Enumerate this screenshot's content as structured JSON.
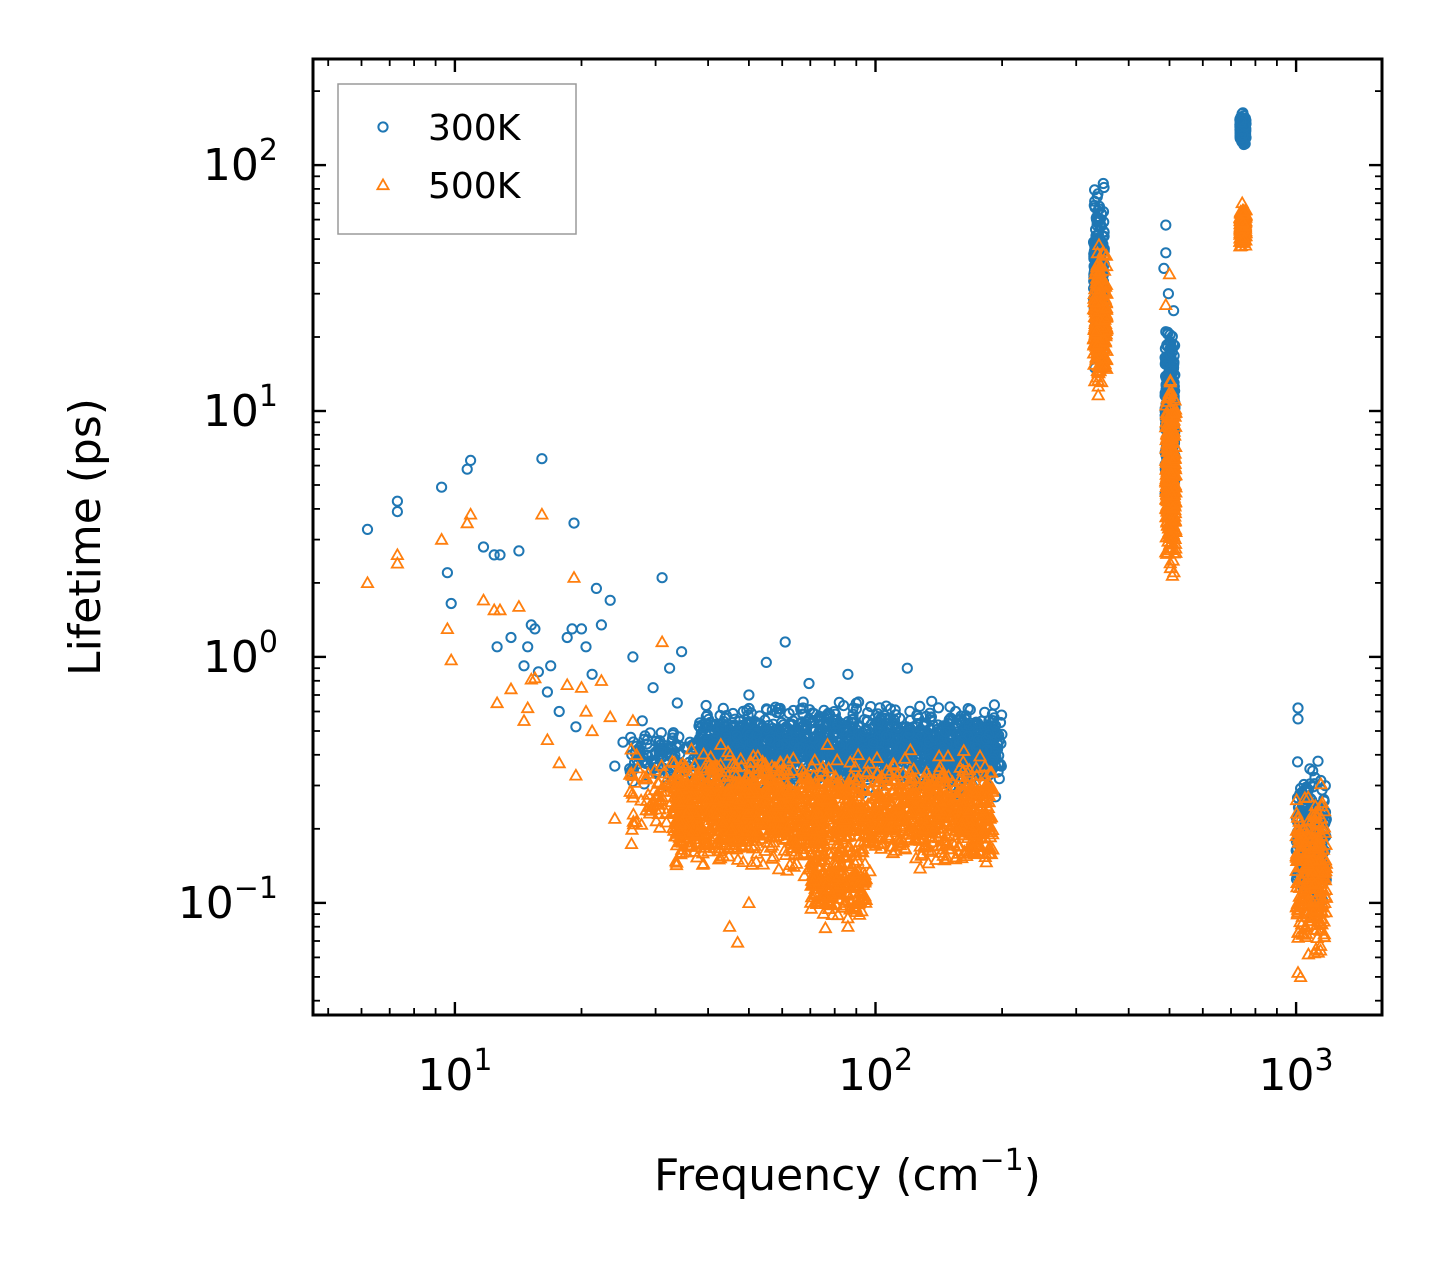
{
  "chart_data": {
    "type": "scatter",
    "title": "",
    "xlabel": "Frequency (cm",
    "xlabel_superscript": "−1",
    "xlabel_suffix": ")",
    "ylabel": "Lifetime (ps)",
    "xscale": "log",
    "yscale": "log",
    "xlim": [
      4.6,
      1600
    ],
    "ylim": [
      0.035,
      270
    ],
    "legend_position": "top-left",
    "x_ticks": [
      {
        "value": 10,
        "base": "10",
        "exp": "1"
      },
      {
        "value": 100,
        "base": "10",
        "exp": "2"
      },
      {
        "value": 1000,
        "base": "10",
        "exp": "3"
      }
    ],
    "y_ticks": [
      {
        "value": 0.1,
        "base": "10",
        "exp": "−1"
      },
      {
        "value": 1,
        "base": "10",
        "exp": "0"
      },
      {
        "value": 10,
        "base": "10",
        "exp": "1"
      },
      {
        "value": 100,
        "base": "10",
        "exp": "2"
      }
    ],
    "series": [
      {
        "name": "300K",
        "color": "#1f77b4",
        "marker": "circle",
        "points": [
          [
            6.2,
            3.3
          ],
          [
            7.3,
            4.3
          ],
          [
            7.3,
            3.9
          ],
          [
            9.3,
            4.9
          ],
          [
            9.6,
            2.2
          ],
          [
            9.8,
            1.65
          ],
          [
            10.7,
            5.8
          ],
          [
            10.9,
            6.3
          ],
          [
            11.7,
            2.8
          ],
          [
            12.4,
            2.6
          ],
          [
            12.8,
            2.6
          ],
          [
            12.6,
            1.1
          ],
          [
            13.6,
            1.2
          ],
          [
            14.2,
            2.7
          ],
          [
            14.6,
            0.92
          ],
          [
            14.9,
            1.1
          ],
          [
            15.2,
            1.35
          ],
          [
            15.5,
            1.3
          ],
          [
            15.8,
            0.87
          ],
          [
            16.1,
            6.4
          ],
          [
            16.6,
            0.72
          ],
          [
            16.9,
            0.92
          ],
          [
            17.7,
            0.6
          ],
          [
            18.5,
            1.2
          ],
          [
            19.0,
            1.3
          ],
          [
            19.2,
            3.5
          ],
          [
            19.4,
            0.52
          ],
          [
            20.0,
            1.3
          ],
          [
            20.5,
            1.1
          ],
          [
            21.2,
            0.85
          ],
          [
            21.7,
            1.9
          ],
          [
            22.3,
            1.35
          ],
          [
            23.4,
            1.7
          ],
          [
            24.0,
            0.36
          ],
          [
            25.1,
            0.45
          ],
          [
            26.5,
            1.0
          ],
          [
            27.9,
            0.55
          ],
          [
            29.6,
            0.75
          ],
          [
            31.1,
            2.1
          ],
          [
            32.4,
            0.9
          ],
          [
            33.8,
            0.65
          ],
          [
            34.6,
            1.05
          ],
          [
            36.2,
            0.45
          ],
          [
            50.0,
            0.7
          ],
          [
            55.0,
            0.95
          ],
          [
            61.0,
            1.15
          ],
          [
            69.5,
            0.78
          ],
          [
            86.0,
            0.85
          ],
          [
            88.5,
            0.62
          ],
          [
            119.0,
            0.9
          ],
          [
            136.0,
            0.66
          ],
          [
            155.0,
            0.6
          ],
          [
            168.0,
            0.61
          ],
          [
            185.0,
            0.3
          ],
          [
            193.0,
            0.27
          ],
          [
            490.0,
            57
          ],
          [
            490.0,
            44
          ],
          [
            485.0,
            38
          ],
          [
            497.0,
            30
          ],
          [
            1010.0,
            0.62
          ],
          [
            1010.0,
            0.56
          ]
        ],
        "clusters": [
          {
            "x": [
              26,
              60
            ],
            "y": [
              0.28,
              0.55
            ],
            "n": 260
          },
          {
            "x": [
              38,
              200
            ],
            "y": [
              0.26,
              0.7
            ],
            "n": 1700
          },
          {
            "x": [
              330,
              350
            ],
            "y": [
              12,
              102
            ],
            "n": 240
          },
          {
            "x": [
              488,
              515
            ],
            "y": [
              3,
              32
            ],
            "n": 320
          },
          {
            "x": [
              735,
              760
            ],
            "y": [
              115,
              168
            ],
            "n": 160
          },
          {
            "x": [
              1000,
              1180
            ],
            "y": [
              0.08,
              0.42
            ],
            "n": 260
          }
        ]
      },
      {
        "name": "500K",
        "color": "#ff7f0e",
        "marker": "triangle",
        "points": [
          [
            6.2,
            2.0
          ],
          [
            7.3,
            2.6
          ],
          [
            7.3,
            2.4
          ],
          [
            9.3,
            3.0
          ],
          [
            9.6,
            1.3
          ],
          [
            9.8,
            0.97
          ],
          [
            10.7,
            3.5
          ],
          [
            10.9,
            3.8
          ],
          [
            11.7,
            1.7
          ],
          [
            12.4,
            1.55
          ],
          [
            12.8,
            1.55
          ],
          [
            12.6,
            0.65
          ],
          [
            13.6,
            0.74
          ],
          [
            14.2,
            1.6
          ],
          [
            14.6,
            0.55
          ],
          [
            14.9,
            0.62
          ],
          [
            15.2,
            0.81
          ],
          [
            15.5,
            0.82
          ],
          [
            16.1,
            3.8
          ],
          [
            16.6,
            0.46
          ],
          [
            17.7,
            0.37
          ],
          [
            18.5,
            0.77
          ],
          [
            19.2,
            2.1
          ],
          [
            19.4,
            0.33
          ],
          [
            20.0,
            0.75
          ],
          [
            20.5,
            0.6
          ],
          [
            21.2,
            0.5
          ],
          [
            22.3,
            0.8
          ],
          [
            23.4,
            0.57
          ],
          [
            24.0,
            0.22
          ],
          [
            26.5,
            0.55
          ],
          [
            31.1,
            1.15
          ],
          [
            45.0,
            0.08
          ],
          [
            47.0,
            0.069
          ],
          [
            50.0,
            0.1
          ],
          [
            76.0,
            0.079
          ],
          [
            86.0,
            0.08
          ],
          [
            190.0,
            0.165
          ],
          [
            500.0,
            36
          ],
          [
            490.0,
            27
          ],
          [
            1010.0,
            0.052
          ],
          [
            1025.0,
            0.05
          ]
        ],
        "clusters": [
          {
            "x": [
              26,
              60
            ],
            "y": [
              0.16,
              0.45
            ],
            "n": 260
          },
          {
            "x": [
              33,
              190
            ],
            "y": [
              0.12,
              0.45
            ],
            "n": 1700
          },
          {
            "x": [
              70,
              95
            ],
            "y": [
              0.08,
              0.17
            ],
            "n": 200
          },
          {
            "x": [
              330,
              355
            ],
            "y": [
              11,
              52
            ],
            "n": 240
          },
          {
            "x": [
              490,
              518
            ],
            "y": [
              1.7,
              18
            ],
            "n": 320
          },
          {
            "x": [
              735,
              760
            ],
            "y": [
              43,
              72
            ],
            "n": 160
          },
          {
            "x": [
              1000,
              1180
            ],
            "y": [
              0.05,
              0.36
            ],
            "n": 260
          }
        ]
      }
    ]
  }
}
